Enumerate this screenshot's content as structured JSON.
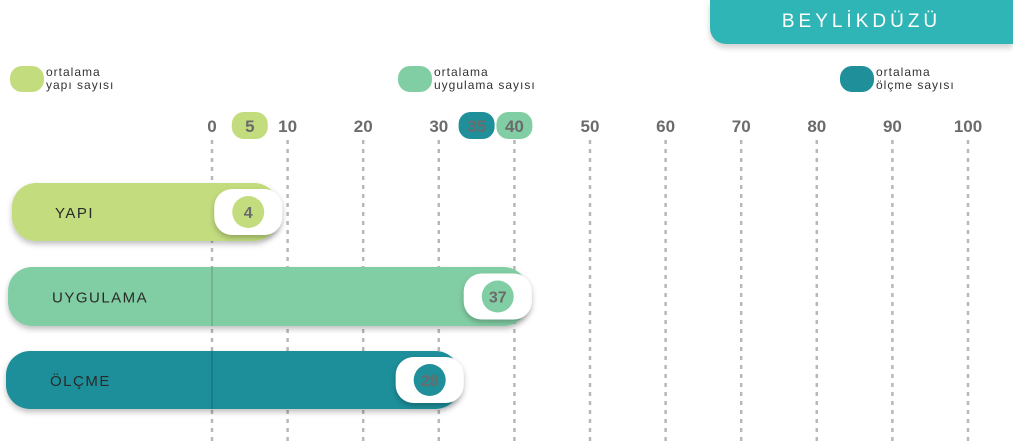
{
  "header": {
    "title": "BEYLİKDÜZÜ"
  },
  "legend": [
    {
      "line1": "ortalama",
      "line2": "yapı sayısı",
      "color": "#c3dc7e"
    },
    {
      "line1": "ortalama",
      "line2": "uygulama sayısı",
      "color": "#82ceA4"
    },
    {
      "line1": "ortalama",
      "line2": "ölçme sayısı",
      "color": "#1f8f9a"
    }
  ],
  "chart_data": {
    "type": "bar",
    "orientation": "horizontal",
    "x_ticks": [
      0,
      10,
      20,
      30,
      40,
      50,
      60,
      70,
      80,
      90,
      100
    ],
    "xlim": [
      0,
      100
    ],
    "grid": true,
    "categories": [
      "YAPI",
      "UYGULAMA",
      "ÖLÇME"
    ],
    "values": [
      4,
      37,
      28
    ],
    "bar_colors": [
      "#c3dc7e",
      "#82cea4",
      "#1f8f9a"
    ],
    "averages": [
      {
        "label": "5",
        "value": 5,
        "color": "#c3dc7e"
      },
      {
        "label": "35",
        "value": 35,
        "color": "#1f8f9a"
      },
      {
        "label": "40",
        "value": 40,
        "color": "#82cea4"
      }
    ]
  }
}
